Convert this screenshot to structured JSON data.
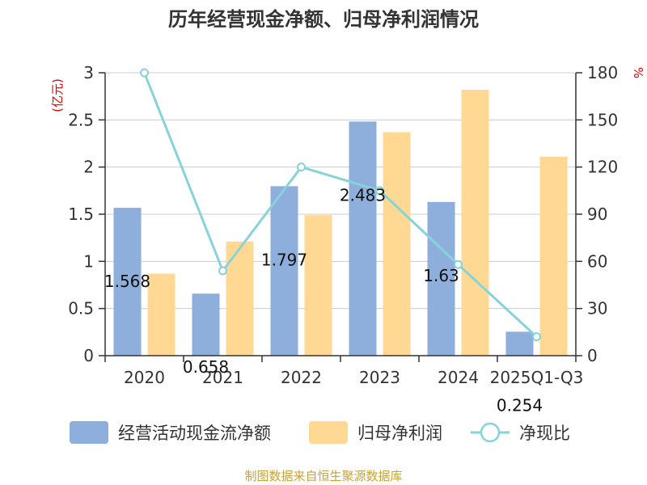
{
  "chart_data": {
    "type": "bar",
    "title": "历年经营现金净额、归母净利润情况",
    "categories": [
      "2020",
      "2021",
      "2022",
      "2023",
      "2024",
      "2025Q1-Q3"
    ],
    "series": [
      {
        "name": "经营活动现金流净额",
        "type": "bar",
        "axis": "left",
        "color": "#8eaedb",
        "values": [
          1.568,
          0.658,
          1.797,
          2.483,
          1.63,
          0.254
        ],
        "labels": [
          "1.568",
          "0.658",
          "1.797",
          "2.483",
          "1.63",
          "0.254"
        ]
      },
      {
        "name": "归母净利润",
        "type": "bar",
        "axis": "left",
        "color": "#ffd894",
        "values": [
          0.87,
          1.21,
          1.49,
          2.37,
          2.82,
          2.11
        ]
      },
      {
        "name": "净现比",
        "type": "line",
        "axis": "right",
        "color": "#86d3d9",
        "values": [
          180,
          54,
          120,
          105,
          58,
          12
        ]
      }
    ],
    "y_left": {
      "unit": "(亿元)",
      "min": 0,
      "max": 3,
      "ticks": [
        "0",
        "0.5",
        "1",
        "1.5",
        "2",
        "2.5",
        "3"
      ]
    },
    "y_right": {
      "unit": "%",
      "min": 0,
      "max": 180,
      "ticks": [
        "0",
        "30",
        "60",
        "90",
        "120",
        "150",
        "180"
      ]
    },
    "grid": true,
    "legend": "bottom"
  },
  "source": "制图数据来自恒生聚源数据库"
}
